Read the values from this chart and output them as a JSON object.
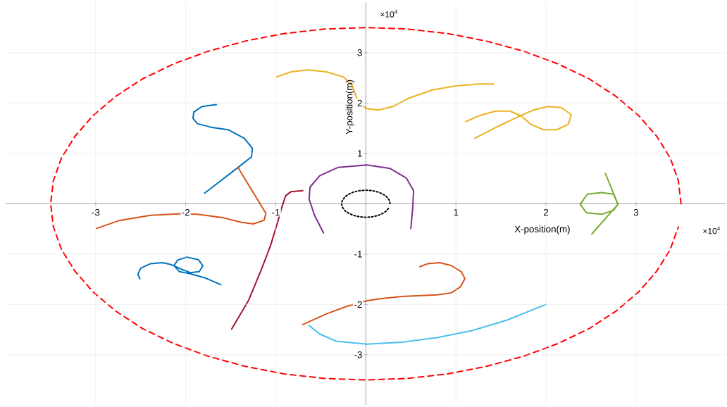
{
  "chart_data": {
    "type": "line",
    "xlabel": "X-position(m)",
    "ylabel": "Y-position(m)",
    "annotations": [
      "×10$^{4}$",
      "×10$^{4}$"
    ],
    "xlim": [
      -4,
      4
    ],
    "ylim": [
      -4,
      4
    ],
    "xticks": [
      -3,
      -2,
      -1,
      1,
      2,
      3
    ],
    "yticks": [
      -3,
      -2,
      -1,
      1,
      2,
      3
    ],
    "grid": true,
    "series": [
      {
        "color": "#ff0000",
        "line_style": "dashed",
        "x": [
          3.5,
          3.47,
          3.38,
          3.23,
          3.03,
          2.78,
          2.48,
          2.13,
          1.75,
          1.34,
          0.91,
          0.46,
          0,
          -0.46,
          -0.91,
          -1.34,
          -1.75,
          -2.13,
          -2.48,
          -2.78,
          -3.03,
          -3.23,
          -3.38,
          -3.47,
          -3.5,
          -3.47,
          -3.38,
          -3.23,
          -3.03,
          -2.78,
          -2.48,
          -2.13,
          -1.75,
          -1.34,
          -0.91,
          -0.46,
          0,
          0.46,
          0.91,
          1.34,
          1.75,
          2.13,
          2.48,
          2.78,
          3.03,
          3.23,
          3.38,
          3.47
        ],
        "values": [
          0,
          0.46,
          0.91,
          1.34,
          1.75,
          2.13,
          2.48,
          2.78,
          3.03,
          3.23,
          3.38,
          3.47,
          3.5,
          3.47,
          3.38,
          3.23,
          3.03,
          2.78,
          2.48,
          2.13,
          1.75,
          1.34,
          0.91,
          0.46,
          0,
          -0.46,
          -0.91,
          -1.34,
          -1.75,
          -2.13,
          -2.48,
          -2.78,
          -3.03,
          -3.23,
          -3.38,
          -3.47,
          -3.5,
          -3.47,
          -3.38,
          -3.23,
          -3.03,
          -2.78,
          -2.48,
          -2.13,
          -1.75,
          -1.34,
          -0.91,
          -0.46
        ]
      },
      {
        "color": "#000000",
        "line_style": "dotted",
        "x": [
          0.27,
          0.26,
          0.23,
          0.19,
          0.14,
          0.07,
          0,
          -0.07,
          -0.14,
          -0.19,
          -0.23,
          -0.26,
          -0.27,
          -0.26,
          -0.23,
          -0.19,
          -0.14,
          -0.07,
          0,
          0.07,
          0.14,
          0.19,
          0.23,
          0.26
        ],
        "values": [
          0,
          0.07,
          0.14,
          0.19,
          0.23,
          0.26,
          0.27,
          0.26,
          0.23,
          0.19,
          0.14,
          0.07,
          0,
          -0.07,
          -0.14,
          -0.19,
          -0.23,
          -0.26,
          -0.27,
          -0.26,
          -0.23,
          -0.19,
          -0.14,
          -0.07
        ]
      },
      {
        "color": "#0072bd",
        "x": [
          -1.66,
          -1.82,
          -1.91,
          -1.92,
          -1.87,
          -1.72,
          -1.53,
          -1.35,
          -1.26,
          -1.27,
          -1.42,
          -1.79
        ],
        "values": [
          1.97,
          1.93,
          1.82,
          1.7,
          1.59,
          1.52,
          1.47,
          1.3,
          1.1,
          0.93,
          0.72,
          0.21
        ]
      },
      {
        "color": "#d95319",
        "x": [
          -1.42,
          -1.11,
          -1.13,
          -1.25,
          -1.38,
          -1.58,
          -1.87,
          -2.08,
          -2.39,
          -2.73,
          -2.99
        ],
        "values": [
          0.72,
          -0.19,
          -0.33,
          -0.4,
          -0.37,
          -0.28,
          -0.21,
          -0.2,
          -0.23,
          -0.33,
          -0.49
        ]
      },
      {
        "color": "#a2142f",
        "x": [
          -0.7,
          -0.83,
          -0.89,
          -0.93,
          -0.98,
          -1.06,
          -1.17,
          -1.3,
          -1.49
        ],
        "values": [
          0.26,
          0.24,
          0.16,
          -0.05,
          -0.37,
          -0.84,
          -1.35,
          -1.91,
          -2.49
        ]
      },
      {
        "color": "#7e2f8e",
        "x": [
          -0.47,
          -0.57,
          -0.63,
          -0.62,
          -0.51,
          -0.31,
          0.01,
          0.27,
          0.45,
          0.53,
          0.52,
          0.5
        ],
        "values": [
          -0.58,
          -0.23,
          0.09,
          0.33,
          0.56,
          0.72,
          0.77,
          0.7,
          0.51,
          0.26,
          -0.09,
          -0.49
        ]
      },
      {
        "color": "#edb120",
        "x": [
          -0.99,
          -0.83,
          -0.64,
          -0.44,
          -0.25,
          -0.16,
          -0.12,
          -0.08,
          0.01,
          0.14,
          0.3,
          0.48,
          0.74,
          1.0,
          1.26,
          1.42
        ],
        "values": [
          2.52,
          2.62,
          2.66,
          2.62,
          2.52,
          2.38,
          2.19,
          2.0,
          1.89,
          1.86,
          1.93,
          2.1,
          2.26,
          2.34,
          2.38,
          2.38
        ]
      },
      {
        "color": "#edb120",
        "x": [
          1.21,
          1.47,
          1.72,
          1.86,
          2.02,
          2.17,
          2.28,
          2.25,
          2.12,
          1.97,
          1.83,
          1.72,
          1.6,
          1.44,
          1.26,
          1.11
        ],
        "values": [
          1.3,
          1.54,
          1.75,
          1.86,
          1.93,
          1.91,
          1.77,
          1.58,
          1.47,
          1.47,
          1.58,
          1.75,
          1.84,
          1.84,
          1.75,
          1.63
        ]
      },
      {
        "color": "#77ac30",
        "x": [
          2.66,
          2.8,
          2.75,
          2.62,
          2.46,
          2.38,
          2.45,
          2.62,
          2.75,
          2.8,
          2.51
        ],
        "values": [
          0.6,
          -0.01,
          0.19,
          0.22,
          0.19,
          -0.01,
          -0.18,
          -0.21,
          -0.13,
          -0.01,
          -0.6
        ]
      },
      {
        "color": "#0072bd",
        "x": [
          -2.51,
          -2.53,
          -2.5,
          -2.39,
          -2.26,
          -2.16,
          -2.05,
          -1.95,
          -1.85,
          -1.81,
          -1.86,
          -1.99,
          -2.09,
          -2.13,
          -2.07,
          -1.95,
          -1.79,
          -1.61
        ],
        "values": [
          -1.49,
          -1.4,
          -1.28,
          -1.19,
          -1.17,
          -1.21,
          -1.3,
          -1.37,
          -1.35,
          -1.23,
          -1.11,
          -1.06,
          -1.12,
          -1.23,
          -1.35,
          -1.39,
          -1.47,
          -1.61
        ]
      },
      {
        "color": "#d95319",
        "x": [
          0.6,
          0.69,
          0.82,
          0.95,
          1.06,
          1.1,
          1.05,
          0.95,
          0.79,
          0.4,
          0.14,
          0.01,
          -0.2,
          -0.44,
          -0.7
        ],
        "values": [
          -1.25,
          -1.19,
          -1.17,
          -1.23,
          -1.35,
          -1.49,
          -1.65,
          -1.77,
          -1.81,
          -1.84,
          -1.89,
          -1.93,
          -2.03,
          -2.19,
          -2.4
        ]
      },
      {
        "color": "#4dbeee",
        "x": [
          -0.63,
          -0.51,
          -0.33,
          0.01,
          0.4,
          0.79,
          1.18,
          1.57,
          2.0
        ],
        "values": [
          -2.42,
          -2.59,
          -2.73,
          -2.79,
          -2.75,
          -2.66,
          -2.52,
          -2.31,
          -2.0
        ]
      }
    ]
  }
}
